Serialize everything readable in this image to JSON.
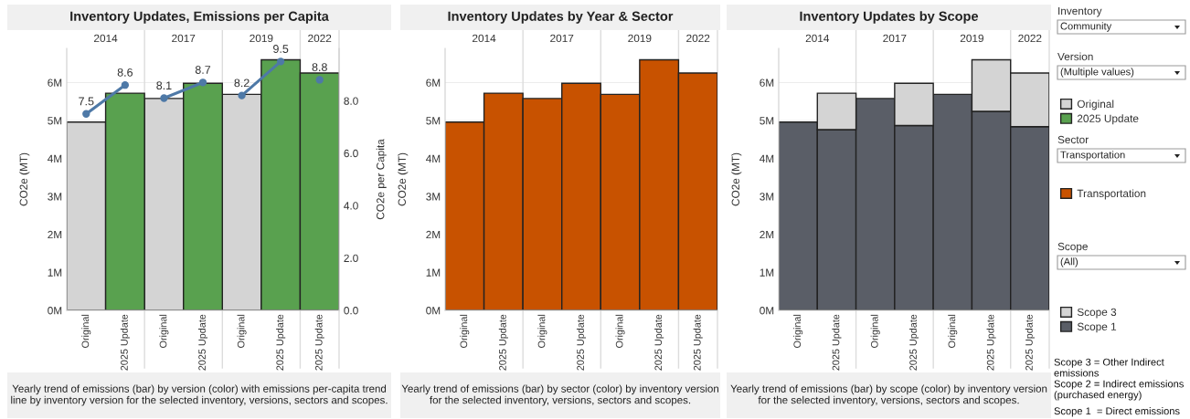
{
  "chart_data": [
    {
      "type": "bar",
      "title": "Inventory Updates, Emissions per Capita",
      "ylabel": "CO2e (MT)",
      "y2label": "CO2e per Capita",
      "categories": [
        "Original",
        "2025 Update",
        "Original",
        "2025 Update",
        "Original",
        "2025 Update",
        "2025 Update"
      ],
      "series": [
        {
          "name": "Original",
          "color": "#d4d4d4",
          "values": [
            4.96,
            null,
            5.58,
            null,
            5.69,
            null,
            null
          ]
        },
        {
          "name": "2025 Update",
          "color": "#59a14f",
          "values": [
            null,
            5.72,
            null,
            5.98,
            null,
            6.6,
            6.25
          ]
        },
        {
          "type": "line",
          "axis": "y2",
          "color": "#4e79a7",
          "values": [
            7.5,
            8.6,
            null,
            null,
            null,
            null,
            null
          ],
          "value_labels": [
            "7.5",
            "8.6",
            null,
            null,
            null,
            null,
            null
          ]
        },
        {
          "type": "line",
          "axis": "y2",
          "color": "#4e79a7",
          "values": [
            null,
            null,
            8.1,
            8.7,
            null,
            null,
            null
          ],
          "value_labels": [
            null,
            null,
            "8.1",
            "8.7",
            null,
            null,
            null
          ]
        },
        {
          "type": "line",
          "axis": "y2",
          "color": "#4e79a7",
          "values": [
            null,
            null,
            null,
            null,
            8.2,
            9.5,
            null
          ],
          "value_labels": [
            null,
            null,
            null,
            null,
            "8.2",
            "9.5",
            null
          ]
        },
        {
          "type": "line",
          "axis": "y2",
          "color": "#4e79a7",
          "values": [
            null,
            null,
            null,
            null,
            null,
            null,
            8.8
          ],
          "value_labels": [
            null,
            null,
            null,
            null,
            null,
            null,
            "8.8"
          ]
        }
      ],
      "ylim": [
        0,
        6.9
      ],
      "yticks": [
        {
          "value": 0,
          "label": "0M"
        },
        {
          "value": 1,
          "label": "1M"
        },
        {
          "value": 2,
          "label": "2M"
        },
        {
          "value": 3,
          "label": "3M"
        },
        {
          "value": 4,
          "label": "4M"
        },
        {
          "value": 5,
          "label": "5M"
        },
        {
          "value": 6,
          "label": "6M"
        }
      ],
      "y2lim": [
        0,
        10
      ],
      "y2ticks": [
        {
          "value": 0,
          "label": "0.0"
        },
        {
          "value": 2,
          "label": "2.0"
        },
        {
          "value": 4,
          "label": "4.0"
        },
        {
          "value": 6,
          "label": "6.0"
        },
        {
          "value": 8,
          "label": "8.0"
        }
      ],
      "marker": "circle",
      "grid": "y",
      "legend": "right",
      "annotations": [
        "2014",
        "2017",
        "2019",
        "2022",
        "Yearly trend of emissions (bar) by version (color) with emissions per-capita trend line by inventory version for the selected inventory, versions, sectors and scopes."
      ]
    },
    {
      "type": "bar",
      "title": "Inventory Updates by Year & Sector",
      "ylabel": "CO2e (MT)",
      "categories": [
        "Original",
        "2025 Update",
        "Original",
        "2025 Update",
        "Original",
        "2025 Update",
        "2025 Update"
      ],
      "series": [
        {
          "name": "Transportation",
          "color": "#c85200",
          "values": [
            4.96,
            5.72,
            5.58,
            5.98,
            5.69,
            6.6,
            6.25
          ]
        }
      ],
      "ylim": [
        0,
        6.9
      ],
      "yticks": [
        {
          "value": 0,
          "label": "0M"
        },
        {
          "value": 1,
          "label": "1M"
        },
        {
          "value": 2,
          "label": "2M"
        },
        {
          "value": 3,
          "label": "3M"
        },
        {
          "value": 4,
          "label": "4M"
        },
        {
          "value": 5,
          "label": "5M"
        },
        {
          "value": 6,
          "label": "6M"
        }
      ],
      "grid": "y",
      "legend": "right",
      "annotations": [
        "2014",
        "2017",
        "2019",
        "2022",
        "Yearly trend of emissions (bar) by sector (color) by inventory version for the selected inventory, versions, sectors and scopes."
      ]
    },
    {
      "type": "bar",
      "title": "Inventory Updates by Scope",
      "ylabel": "CO2e (MT)",
      "stacked": true,
      "categories": [
        "Original",
        "2025 Update",
        "Original",
        "2025 Update",
        "Original",
        "2025 Update",
        "2025 Update"
      ],
      "series": [
        {
          "name": "Scope 1",
          "color": "#5a5e67",
          "values": [
            4.96,
            4.76,
            5.58,
            4.87,
            5.69,
            5.24,
            4.84
          ]
        },
        {
          "name": "Scope 3",
          "color": "#d4d4d4",
          "values": [
            null,
            0.96,
            null,
            1.11,
            null,
            1.36,
            1.41
          ]
        }
      ],
      "ylim": [
        0,
        6.9
      ],
      "yticks": [
        {
          "value": 0,
          "label": "0M"
        },
        {
          "value": 1,
          "label": "1M"
        },
        {
          "value": 2,
          "label": "2M"
        },
        {
          "value": 3,
          "label": "3M"
        },
        {
          "value": 4,
          "label": "4M"
        },
        {
          "value": 5,
          "label": "5M"
        },
        {
          "value": 6,
          "label": "6M"
        }
      ],
      "grid": "y",
      "legend": "right",
      "annotations": [
        "2014",
        "2017",
        "2019",
        "2022",
        "Yearly trend of emissions (bar) by scope (color) by inventory version for the selected inventory, versions, sectors and scopes."
      ]
    },
    {
      "type": "other",
      "annotations": [
        "Inventory",
        "Community",
        "Version",
        "(Multiple values)",
        "Sector",
        "Transportation",
        "Scope",
        "(All)",
        "Scope 3 = Other Indirect emissions",
        "Scope 2 = Indirect emissions (purchased energy)",
        "Scope 1  = Direct emissions"
      ]
    }
  ]
}
